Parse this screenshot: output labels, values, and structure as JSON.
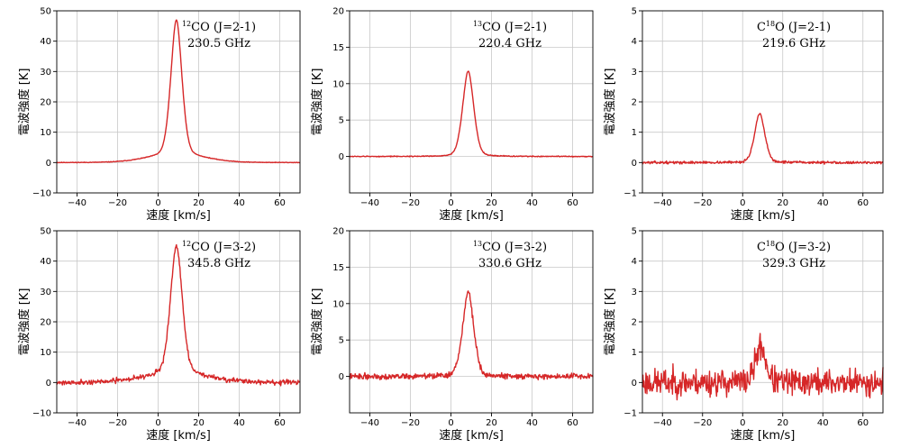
{
  "figure": {
    "xlabel": "速度 [km/s]",
    "ylabel": "電波強度 [K]",
    "line_color": "#d62728"
  },
  "chart_data": [
    {
      "type": "line",
      "series": [
        {
          "molecule": "CO",
          "isotope": "12",
          "transition": "(J=2-1)",
          "frequency": "230.5 GHz",
          "peak_x": 9,
          "peak": 44.5,
          "width": 3.0,
          "wing_amp": 2.5,
          "wing_width": 14,
          "noise": 0.05,
          "seed": 11
        }
      ],
      "xlim": [
        -50,
        70
      ],
      "ylim": [
        -10,
        50
      ],
      "xticks": [
        -40,
        -20,
        0,
        20,
        40,
        60
      ],
      "yticks": [
        -10,
        0,
        10,
        20,
        30,
        40,
        50
      ],
      "grid": true
    },
    {
      "type": "line",
      "series": [
        {
          "molecule": "CO",
          "isotope": "13",
          "transition": "(J=2-1)",
          "frequency": "220.4 GHz",
          "peak_x": 8.5,
          "peak": 11.7,
          "width": 3.0,
          "wing_amp": 0.0,
          "wing_width": 10,
          "noise": 0.03,
          "seed": 12
        }
      ],
      "xlim": [
        -50,
        70
      ],
      "ylim": [
        -5,
        20
      ],
      "xticks": [
        -40,
        -20,
        0,
        20,
        40,
        60
      ],
      "yticks": [
        0,
        5,
        10,
        15,
        20
      ],
      "grid": true
    },
    {
      "type": "line",
      "series": [
        {
          "molecule": "O",
          "isotope": "18",
          "prefix": "C",
          "transition": "(J=2-1)",
          "frequency": "219.6 GHz",
          "peak_x": 8.5,
          "peak": 1.6,
          "width": 2.8,
          "wing_amp": 0.0,
          "wing_width": 10,
          "noise": 0.02,
          "seed": 13
        }
      ],
      "xlim": [
        -50,
        70
      ],
      "ylim": [
        -1,
        5
      ],
      "xticks": [
        -40,
        -20,
        0,
        20,
        40,
        60
      ],
      "yticks": [
        -1,
        0,
        1,
        2,
        3,
        4,
        5
      ],
      "grid": true
    },
    {
      "type": "line",
      "series": [
        {
          "molecule": "CO",
          "isotope": "12",
          "transition": "(J=3-2)",
          "frequency": "345.8 GHz",
          "peak_x": 9,
          "peak": 42,
          "width": 3.2,
          "wing_amp": 3.0,
          "wing_width": 16,
          "noise": 0.4,
          "seed": 21
        }
      ],
      "xlim": [
        -50,
        70
      ],
      "ylim": [
        -10,
        50
      ],
      "xticks": [
        -40,
        -20,
        0,
        20,
        40,
        60
      ],
      "yticks": [
        -10,
        0,
        10,
        20,
        30,
        40,
        50
      ],
      "grid": true
    },
    {
      "type": "line",
      "series": [
        {
          "molecule": "CO",
          "isotope": "13",
          "transition": "(J=3-2)",
          "frequency": "330.6 GHz",
          "peak_x": 8.5,
          "peak": 11.6,
          "width": 3.0,
          "wing_amp": 0.0,
          "wing_width": 10,
          "noise": 0.2,
          "seed": 22
        }
      ],
      "xlim": [
        -50,
        70
      ],
      "ylim": [
        -5,
        20
      ],
      "xticks": [
        -40,
        -20,
        0,
        20,
        40,
        60
      ],
      "yticks": [
        0,
        5,
        10,
        15,
        20
      ],
      "grid": true
    },
    {
      "type": "line",
      "series": [
        {
          "molecule": "O",
          "isotope": "18",
          "prefix": "C",
          "transition": "(J=3-2)",
          "frequency": "329.3 GHz",
          "peak_x": 9,
          "peak": 1.2,
          "width": 2.8,
          "wing_amp": 0.0,
          "wing_width": 10,
          "noise": 0.22,
          "seed": 23
        }
      ],
      "xlim": [
        -50,
        70
      ],
      "ylim": [
        -1,
        5
      ],
      "xticks": [
        -40,
        -20,
        0,
        20,
        40,
        60
      ],
      "yticks": [
        -1,
        0,
        1,
        2,
        3,
        4,
        5
      ],
      "grid": true
    }
  ]
}
